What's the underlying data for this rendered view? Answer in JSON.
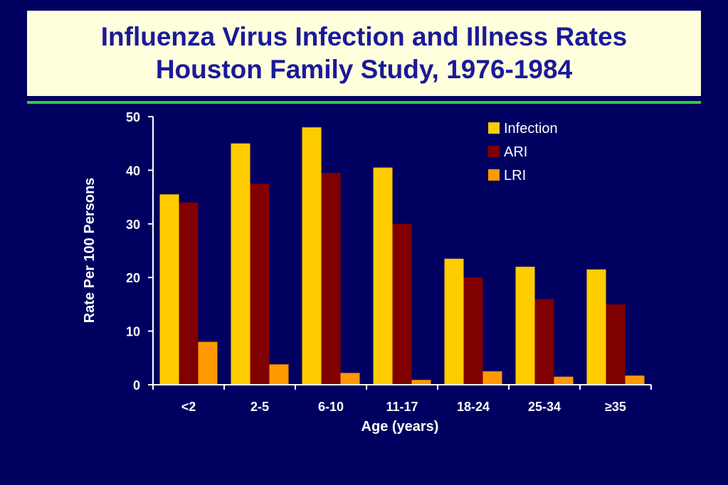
{
  "slide": {
    "title_line1": "Influenza Virus Infection and Illness Rates",
    "title_line2": "Houston Family Study, 1976-1984",
    "background_color": "#000060",
    "title_box_color": "#FFFFDD",
    "title_text_color": "#1A1A99",
    "accent_line_color": "#33CC33"
  },
  "chart_data": {
    "type": "bar",
    "title": "",
    "xlabel": "Age (years)",
    "ylabel": "Rate Per 100 Persons",
    "ylim": [
      0,
      50
    ],
    "yticks": [
      0,
      10,
      20,
      30,
      40,
      50
    ],
    "grid": false,
    "legend_position": "top-right",
    "categories": [
      "<2",
      "2-5",
      "6-10",
      "11-17",
      "18-24",
      "25-34",
      "≥35"
    ],
    "series": [
      {
        "name": "Infection",
        "color": "#FFCC00",
        "values": [
          35.5,
          45,
          48,
          40.5,
          23.5,
          22,
          21.5
        ]
      },
      {
        "name": "ARI",
        "color": "#800000",
        "values": [
          34,
          37.5,
          39.5,
          30,
          20,
          16,
          15
        ]
      },
      {
        "name": "LRI",
        "color": "#FF9900",
        "values": [
          8,
          3.8,
          2.2,
          0.9,
          2.5,
          1.5,
          1.7
        ]
      }
    ]
  }
}
